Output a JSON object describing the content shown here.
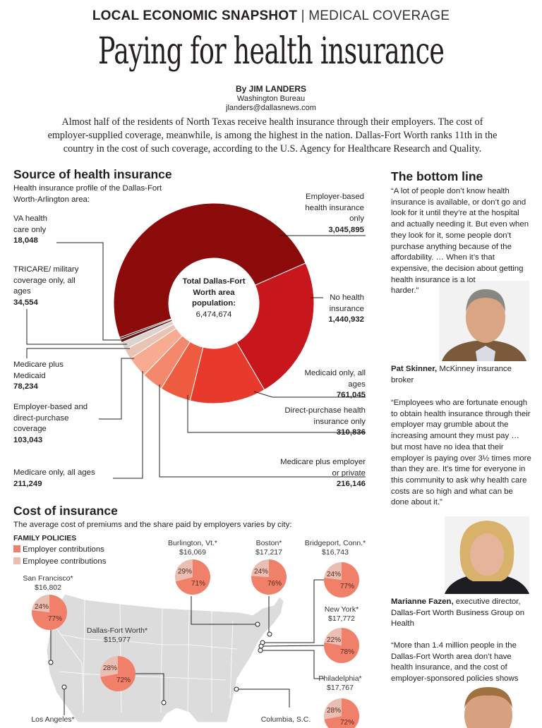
{
  "header": {
    "kicker": "LOCAL ECONOMIC SNAPSHOT",
    "separator": "|",
    "section": "MEDICAL COVERAGE",
    "headline": "Paying for health insurance",
    "byline": "By JIM LANDERS",
    "bureau": "Washington Bureau",
    "email": "jlanders@dallasnews.com",
    "intro": "Almost half of the residents of North Texas receive health insurance through their employers. The cost of employer-supplied coverage, meanwhile, is among the highest in the nation. Dallas-Fort Worth ranks 11th in the country in the cost of such coverage, according to the U.S. Agency for Healthcare Research and Quality."
  },
  "source": {
    "title": "Source of health insurance",
    "subtitle": "Health insurance profile of the Dallas-Fort Worth-Arlington area:",
    "center_label": "Total Dallas-Fort Worth area population:",
    "center_value": "6,474,674"
  },
  "cost": {
    "title": "Cost of insurance",
    "subtitle": "The average cost of premiums and the share paid by employers varies by city:",
    "legend_title": "FAMILY POLICIES",
    "legend": [
      {
        "label": "Employer contributions",
        "color": "#f0806a"
      },
      {
        "label": "Employee contributions",
        "color": "#e8bfb2"
      }
    ],
    "partial_labels": [
      "Los Angeles*",
      "Columbia, S.C."
    ]
  },
  "sidebar": {
    "title": "The bottom line",
    "quote1": "“A lot of people don’t know health insurance is available, or don’t go and look for it until they’re at the hospital and actually needing it. But even when they look for it, some people don’t purchase anything because of the affordability. … When it’s that expensive, the decision about getting health insurance is a lot harder.”",
    "attrib1_name": "Pat Skinner,",
    "attrib1_role": "McKinney insurance broker",
    "quote2": "“Employees who are fortunate enough to obtain health insurance through their employer may grumble about the increasing amount they must pay … but most have no idea that their employer is paying over 3½ times more than they are.  It’s time for everyone in this community to ask why health care costs are so high and what can be done about it.”",
    "attrib2_name": "Marianne Fazen,",
    "attrib2_role": "executive director, Dallas-Fort Worth Business Group on Health",
    "quote3": "“More than 1.4 million people in the Dallas-Fort Worth area don’t have health insurance, and the cost of employer-sponsored policies shows"
  },
  "chart_data": [
    {
      "type": "pie",
      "title": "Source of health insurance",
      "donut": true,
      "slices": [
        {
          "label": "Employer-based health insurance only",
          "value": 3045895,
          "display": "3,045,895",
          "color": "#8b0a0a"
        },
        {
          "label": "No health insurance",
          "value": 1440932,
          "display": "1,440,932",
          "color": "#c8161d"
        },
        {
          "label": "Medicaid only, all ages",
          "value": 761045,
          "display": "761,045",
          "color": "#e73a2c"
        },
        {
          "label": "Direct-purchase health insurance only",
          "value": 310836,
          "display": "310,836",
          "color": "#ee5b3f"
        },
        {
          "label": "Medicare plus employer or private",
          "value": 216146,
          "display": "216,146",
          "color": "#f4886c"
        },
        {
          "label": "Medicare only, all ages",
          "value": 211249,
          "display": "211,249",
          "color": "#f7ab91"
        },
        {
          "label": "Employer-based and direct-purchase coverage",
          "value": 103043,
          "display": "103,043",
          "color": "#e9c3b6"
        },
        {
          "label": "Medicare plus Medicaid",
          "value": 78234,
          "display": "78,234",
          "color": "#dcd3cf"
        },
        {
          "label": "TRICARE/ military coverage only, all ages",
          "value": 34554,
          "display": "34,554",
          "color": "#6b1414"
        },
        {
          "label": "VA health care only",
          "value": 18048,
          "display": "18,048",
          "color": "#3b0a0a"
        }
      ]
    },
    {
      "type": "pie",
      "title": "FAMILY POLICIES",
      "cities": [
        {
          "city": "Burlington, Vt.*",
          "cost": "$16,069",
          "employer": 71,
          "employee": 29
        },
        {
          "city": "Boston*",
          "cost": "$17,217",
          "employer": 76,
          "employee": 24
        },
        {
          "city": "Bridgeport, Conn.*",
          "cost": "$16,743",
          "employer": 77,
          "employee": 24
        },
        {
          "city": "San Francisco*",
          "cost": "$16,802",
          "employer": 77,
          "employee": 24
        },
        {
          "city": "New York*",
          "cost": "$17,772",
          "employer": 78,
          "employee": 22
        },
        {
          "city": "Dallas-Fort Worth*",
          "cost": "$15,977",
          "employer": 72,
          "employee": 28
        },
        {
          "city": "Philadelphia*",
          "cost": "$17,767",
          "employer": 72,
          "employee": 28
        }
      ]
    }
  ]
}
